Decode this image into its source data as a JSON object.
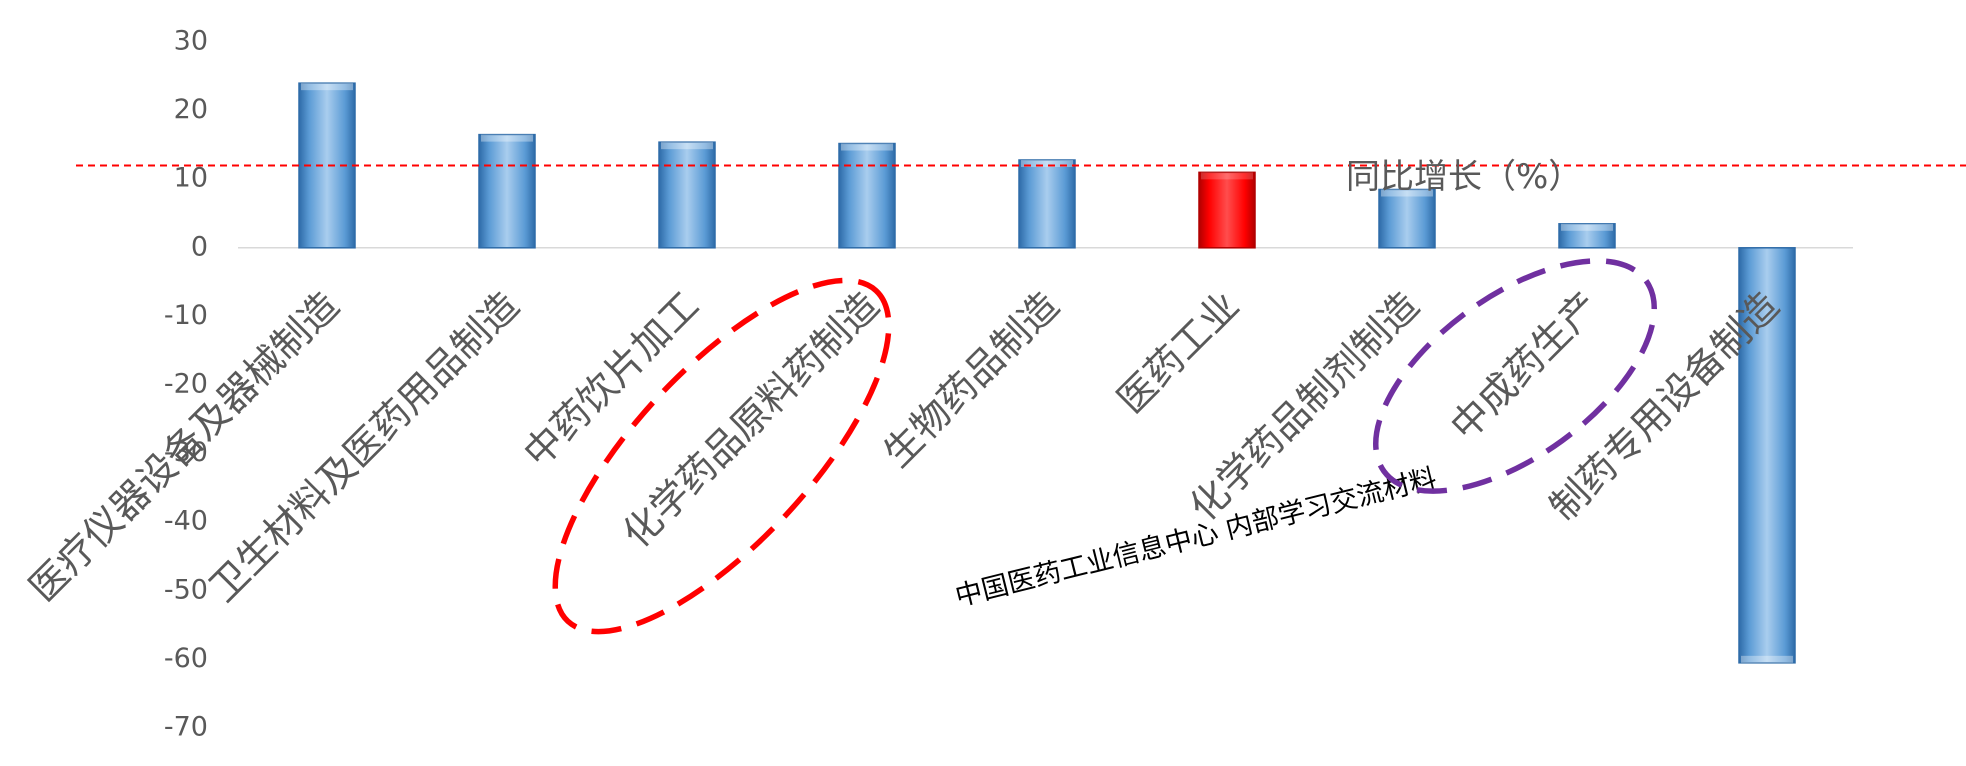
{
  "chart_data": {
    "type": "bar",
    "categories": [
      "医疗仪器设备及器械制造",
      "卫生材料及医药用品制造",
      "中药饮片加工",
      "化学药品原料药制造",
      "生物药品制造",
      "医药工业",
      "化学药品制剂制造",
      "中成药生产",
      "制药专用设备制造"
    ],
    "series": [
      {
        "name": "同比增长（%）",
        "values": [
          24,
          16.5,
          15.4,
          15.2,
          12.8,
          11,
          8.5,
          3.5,
          -60.5
        ]
      }
    ],
    "highlight_index": 5,
    "reference_line": 12,
    "ylim": [
      -70,
      30
    ],
    "yticks": [
      30,
      20,
      10,
      0,
      -10,
      -20,
      -30,
      -40,
      -50,
      -60,
      -70
    ],
    "grid": false,
    "legend": "none",
    "watermark": "中国医药工业信息中心  内部学习交流材料",
    "circled_categories": [
      3,
      7
    ],
    "colors": {
      "bar": "#5b9bd5",
      "bar_dark": "#2e6ba8",
      "bar_light": "#a9cdee",
      "highlight": "#ff0000",
      "highlight_dark": "#b00000",
      "reference_line": "#ff0000",
      "circle_red": "#ff0000",
      "circle_purple": "#7030a0",
      "axis_text": "#595959",
      "axis_line": "#d9d9d9"
    }
  }
}
